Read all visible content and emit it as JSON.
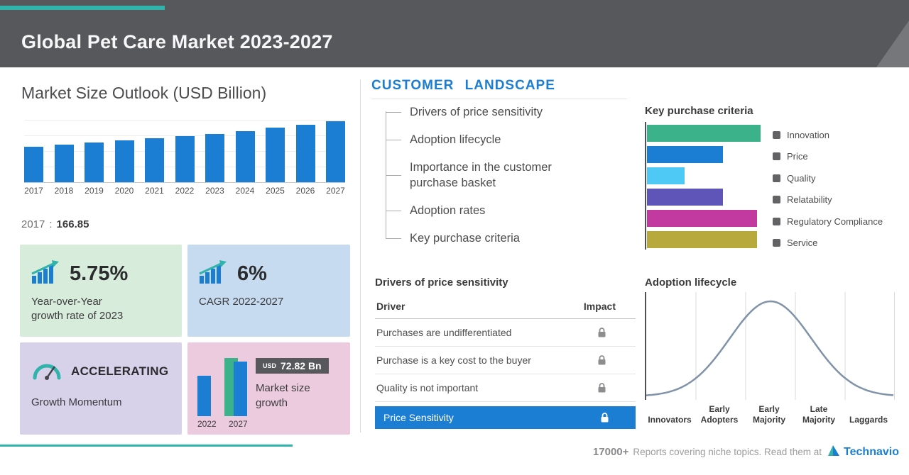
{
  "header": {
    "title": "Global Pet Care Market 2023-2027"
  },
  "market_size": {
    "title": "Market Size Outlook (USD Billion)",
    "base_year": "2017",
    "separator": ":",
    "base_value": "166.85",
    "cards": {
      "yoy": {
        "value": "5.75%",
        "label_lines": [
          "Year-over-Year",
          "growth rate of 2023"
        ]
      },
      "cagr": {
        "value": "6%",
        "label": "CAGR 2022-2027"
      },
      "momentum": {
        "value": "ACCELERATING",
        "label": "Growth Momentum"
      },
      "growth": {
        "badge_currency": "USD",
        "badge_value": "72.82 Bn",
        "label_lines": [
          "Market size",
          "growth"
        ]
      }
    }
  },
  "customer_landscape": {
    "title": "CUSTOMER LANDSCAPE",
    "items": [
      "Drivers of price sensitivity",
      "Adoption lifecycle",
      "Importance in the customer purchase basket",
      "Adoption rates",
      "Key purchase criteria"
    ]
  },
  "price_sensitivity": {
    "title": "Drivers of price sensitivity",
    "columns": [
      "Driver",
      "Impact"
    ],
    "rows": [
      "Purchases are undifferentiated",
      "Purchase is a key cost to the buyer",
      "Quality is not important"
    ],
    "highlight_row": "Price Sensitivity"
  },
  "footer": {
    "count": "17000+",
    "tagline": "Reports covering niche topics. Read them at",
    "brand": "Technavio"
  },
  "colors": {
    "accent_teal": "#2fb3aa",
    "brand_blue": "#1b7ed3",
    "header_gray": "#57585b"
  },
  "chart_data": [
    {
      "id": "market-size-outlook",
      "type": "bar",
      "title": "Market Size Outlook (USD Billion)",
      "categories": [
        "2017",
        "2018",
        "2019",
        "2020",
        "2021",
        "2022",
        "2023",
        "2024",
        "2025",
        "2026",
        "2027"
      ],
      "values": [
        166.85,
        176,
        186,
        195,
        205,
        215.4,
        227.8,
        241,
        256,
        271,
        288.2
      ],
      "ylim": [
        0,
        300
      ],
      "bar_color": "#1b7ed3",
      "grid": true,
      "note": "2017 value labeled 166.85; later years estimated from bar heights consistent with 6% CAGR 2022-2027"
    },
    {
      "id": "key-purchase-criteria",
      "type": "bar",
      "orientation": "horizontal",
      "title": "Key purchase criteria",
      "categories": [
        "Innovation",
        "Price",
        "Quality",
        "Relatability",
        "Regulatory Compliance",
        "Service"
      ],
      "values": [
        100,
        67,
        33,
        67,
        97,
        97
      ],
      "value_unit": "relative bar length, % of longest bar",
      "colors": [
        "#3bb289",
        "#1b7ed3",
        "#4ec9f5",
        "#5f55b8",
        "#c23a9f",
        "#b8a93c"
      ],
      "legend_position": "right"
    },
    {
      "id": "market-size-growth",
      "type": "bar",
      "title": "Market size growth",
      "categories": [
        "2022",
        "2027"
      ],
      "values": [
        215.4,
        288.2
      ],
      "growth_label": "USD 72.82 Bn",
      "colors": [
        "#1b7ed3",
        "#3bb289"
      ]
    },
    {
      "id": "adoption-lifecycle",
      "type": "area",
      "title": "Adoption lifecycle",
      "curve": "bell",
      "categories": [
        "Innovators",
        "Early Adopters",
        "Early Majority",
        "Late Majority",
        "Laggards"
      ]
    }
  ]
}
